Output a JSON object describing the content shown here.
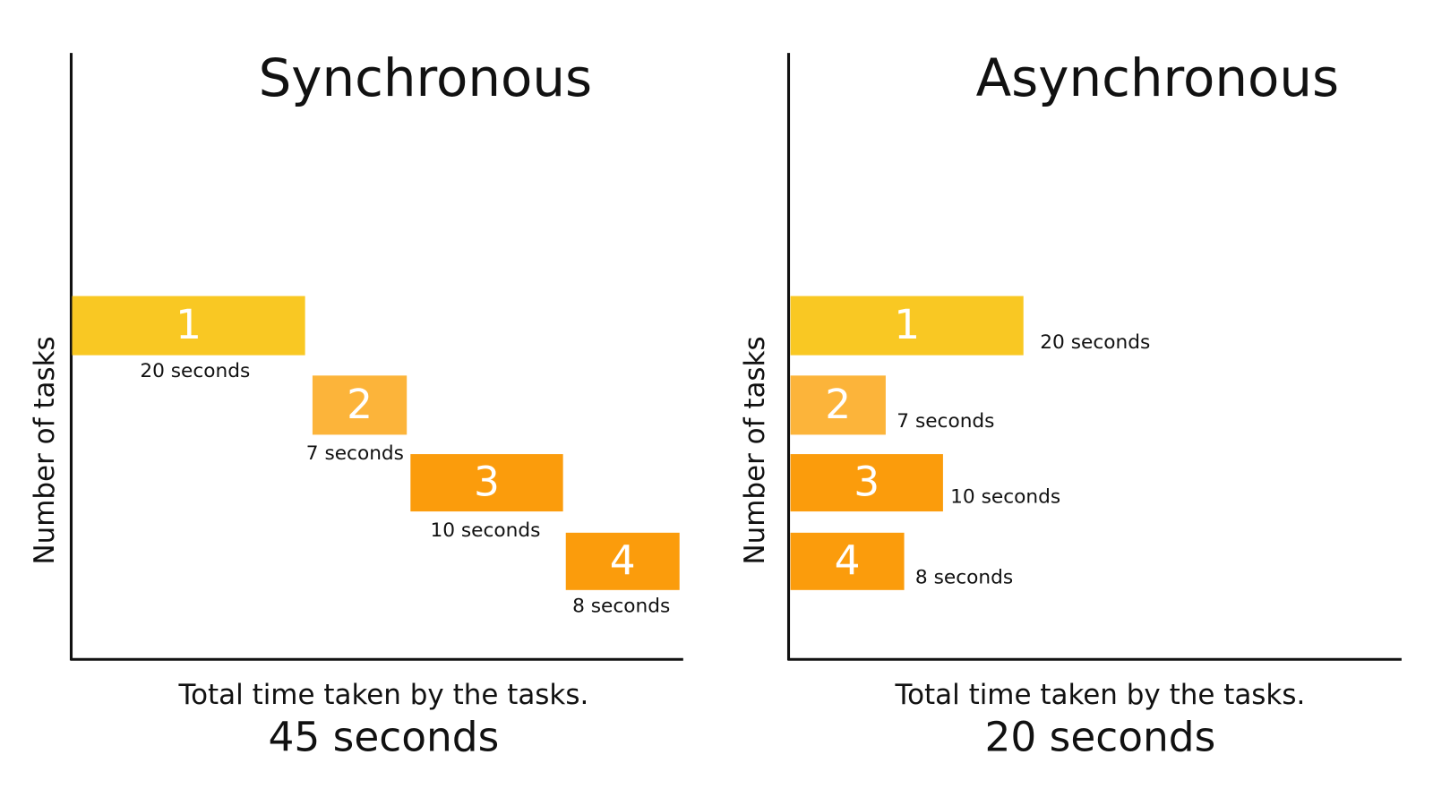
{
  "panels": [
    {
      "title": "Synchronous",
      "y_axis_label": "Number of tasks",
      "tasks": [
        {
          "label": "1",
          "duration": "20 seconds"
        },
        {
          "label": "2",
          "duration": "7 seconds"
        },
        {
          "label": "3",
          "duration": "10 seconds"
        },
        {
          "label": "4",
          "duration": "8 seconds"
        }
      ],
      "x_axis_label": "Total time taken by the tasks.",
      "total": "45 seconds"
    },
    {
      "title": "Asynchronous",
      "y_axis_label": "Number of tasks",
      "tasks": [
        {
          "label": "1",
          "duration": "20 seconds"
        },
        {
          "label": "2",
          "duration": "7 seconds"
        },
        {
          "label": "3",
          "duration": "10 seconds"
        },
        {
          "label": "4",
          "duration": "8 seconds"
        }
      ],
      "x_axis_label": "Total time taken by the tasks.",
      "total": "20 seconds"
    }
  ]
}
